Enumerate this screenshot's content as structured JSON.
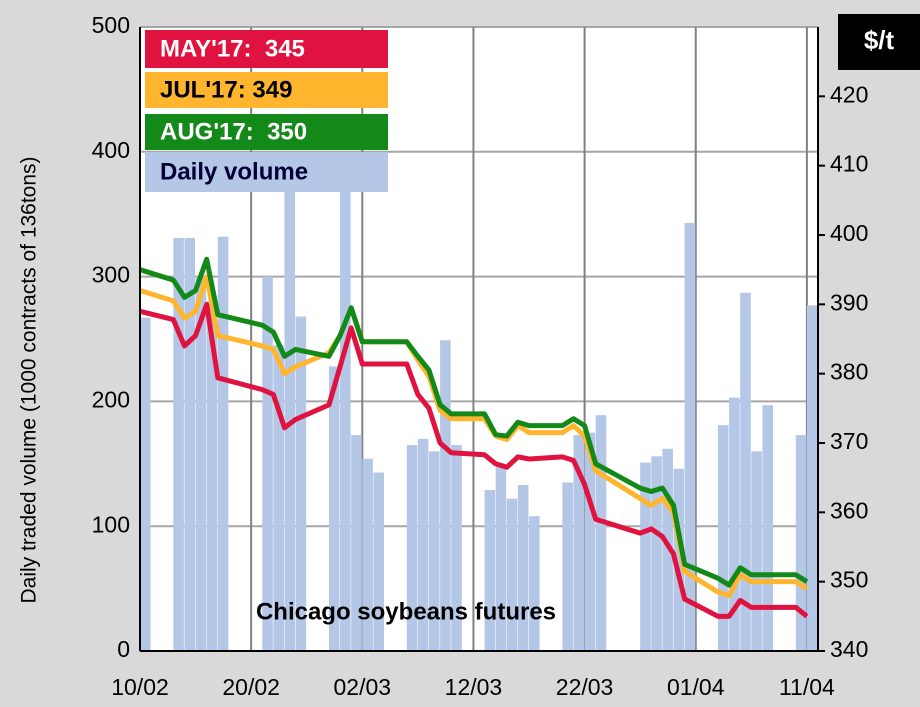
{
  "chart_data": {
    "type": "bar-line",
    "annotation": "Chicago soybeans futures",
    "ylabel": "Daily traded volume  (1000 contracts of 136tons)",
    "y2label": "$/t",
    "x": [
      0,
      3,
      4,
      5,
      6,
      7,
      11,
      12,
      13,
      14,
      17,
      18,
      19,
      20,
      21,
      24,
      25,
      26,
      27,
      28,
      31,
      32,
      33,
      34,
      35,
      38,
      39,
      40,
      41,
      45,
      46,
      47,
      48,
      49,
      52,
      53,
      54,
      55,
      56,
      59,
      60
    ],
    "xlim": [
      0,
      61
    ],
    "xticks": [
      {
        "value": 0,
        "label": "10/02"
      },
      {
        "value": 10,
        "label": "20/02"
      },
      {
        "value": 20,
        "label": "02/03"
      },
      {
        "value": 30,
        "label": "12/03"
      },
      {
        "value": 40,
        "label": "22/03"
      },
      {
        "value": 50,
        "label": "01/04"
      },
      {
        "value": 60,
        "label": "11/04"
      }
    ],
    "ylim": [
      0,
      500
    ],
    "yticks": [
      0,
      100,
      200,
      300,
      400,
      500
    ],
    "y2lim": [
      340,
      430
    ],
    "y2ticks": [
      340,
      350,
      360,
      370,
      380,
      390,
      400,
      410,
      420
    ],
    "grid": true,
    "series": [
      {
        "name": "Daily volume",
        "color": "#b4c7e7",
        "axis": "y",
        "values": [
          267,
          331,
          331,
          300,
          280,
          332,
          300,
          245,
          373,
          268,
          228,
          373,
          173,
          154,
          143,
          165,
          170,
          160,
          249,
          165,
          129,
          150,
          122,
          133,
          108,
          135,
          173,
          175,
          189,
          151,
          156,
          162,
          146,
          343,
          181,
          203,
          287,
          160,
          197,
          173,
          277
        ]
      },
      {
        "name": "MAY'17:  345",
        "color": "#e0123f",
        "axis": "y2",
        "values": [
          389,
          387.8,
          384,
          385.5,
          390,
          379.4,
          377.7,
          377,
          372.2,
          373.4,
          375.5,
          381,
          386.6,
          381.4,
          381.4,
          381.4,
          377,
          375,
          370,
          368.6,
          368.3,
          367,
          366.5,
          368,
          367.7,
          368,
          367.5,
          364,
          359,
          357,
          357.6,
          356.5,
          354,
          347.5,
          345,
          345,
          347.3,
          346.3,
          346.3,
          346.3,
          345
        ]
      },
      {
        "name": "JUL'17: 349",
        "color": "#ffb52e",
        "axis": "y2",
        "values": [
          392,
          390.5,
          388,
          389,
          394,
          385.5,
          384,
          383.5,
          380,
          381,
          383,
          385.5,
          389.5,
          384.6,
          384.6,
          384.6,
          382,
          379.6,
          374.7,
          373.5,
          373.5,
          371,
          370.5,
          372.5,
          371.5,
          371.5,
          372.5,
          371,
          366,
          362,
          361,
          362,
          360,
          351.5,
          348.5,
          348,
          351,
          350,
          350,
          350,
          349
        ]
      },
      {
        "name": "AUG'17:  350",
        "color": "#13891a",
        "axis": "y2",
        "values": [
          395,
          393.5,
          391,
          392,
          396.5,
          388.5,
          387,
          386,
          382.5,
          383.5,
          382.5,
          385.5,
          389.5,
          384.6,
          384.6,
          384.6,
          382.5,
          380.5,
          375.5,
          374.2,
          374.2,
          371.2,
          371,
          373,
          372.5,
          372.5,
          373.5,
          372.5,
          367,
          363.5,
          363,
          363.5,
          361,
          352.5,
          350.5,
          349.5,
          352,
          351,
          351,
          351,
          350
        ]
      }
    ]
  }
}
